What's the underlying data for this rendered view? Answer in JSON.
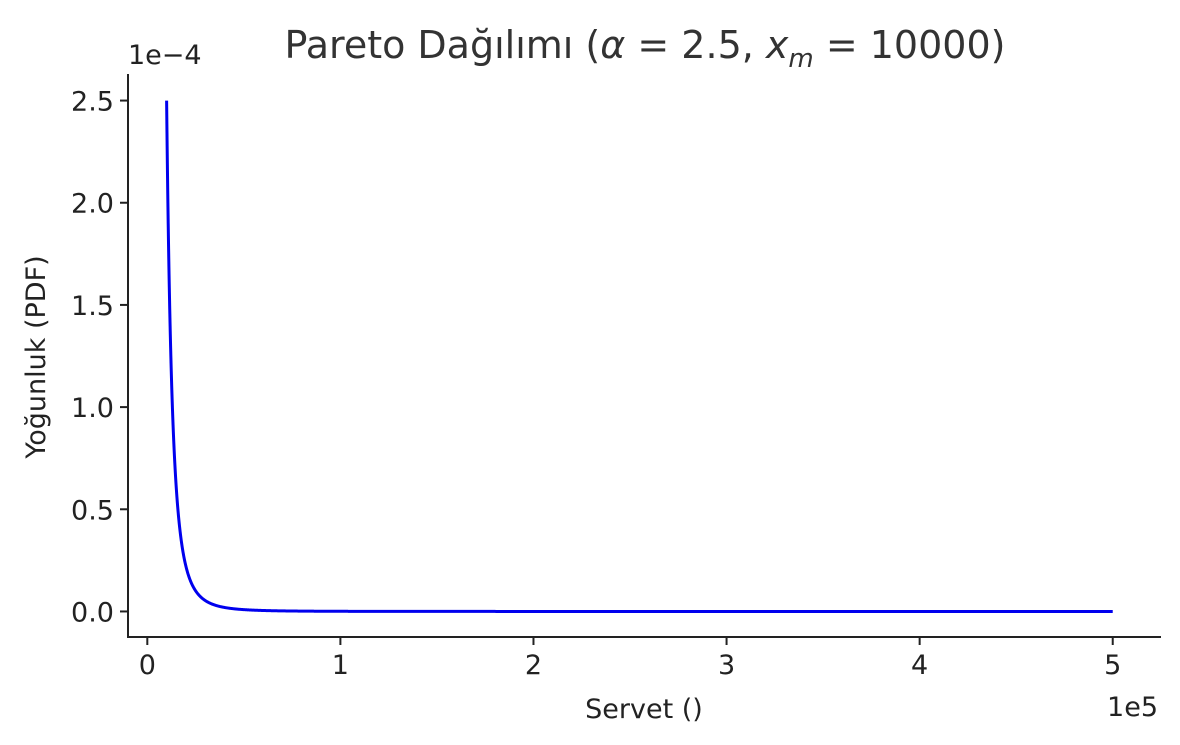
{
  "chart_data": {
    "type": "line",
    "title_prefix": "Pareto Dağılımı (",
    "title_alpha_symbol": "α",
    "title_alpha_eq": " = 2.5,  ",
    "title_xm_base": "x",
    "title_xm_sub": "m",
    "title_xm_eq": " = 10000)",
    "xlabel": "Servet ()",
    "ylabel": "Yoğunluk (PDF)",
    "x_offset_label": "1e5",
    "y_offset_label": "1e−4",
    "x_ticks": [
      "0",
      "1",
      "2",
      "3",
      "4",
      "5"
    ],
    "y_ticks": [
      "0.0",
      "0.5",
      "1.0",
      "1.5",
      "2.0",
      "2.5"
    ],
    "xlim": [
      -10000,
      525000
    ],
    "ylim": [
      -1.25e-05,
      0.000263
    ],
    "grid": false,
    "series": [
      {
        "color": "#0000ee",
        "distribution": "pareto",
        "alpha": 2.5,
        "x_m": 10000,
        "x_range": [
          10000,
          500000
        ],
        "x": [
          10000,
          11000,
          12000,
          13000,
          14000,
          15000,
          16000,
          17500,
          19000,
          20000,
          22500,
          25000,
          27500,
          30000,
          35000,
          40000,
          45000,
          50000,
          60000,
          70000,
          80000,
          100000,
          125000,
          150000,
          200000,
          250000,
          300000,
          400000,
          500000
        ],
        "y": [
          0.00025,
          0.0001971,
          0.0001585,
          0.0001297,
          0.0001077,
          9.07e-05,
          7.73e-05,
          6.19e-05,
          5.03e-05,
          4.42e-05,
          3.27e-05,
          2.53e-05,
          2.02e-05,
          1.64e-05,
          1.14e-05,
          8.1e-06,
          6e-06,
          4.5e-06,
          2.8e-06,
          1.8e-06,
          1.2e-06,
          6e-07,
          3e-07,
          2e-07,
          1e-07,
          1e-07,
          0.0,
          0.0,
          0.0
        ]
      }
    ]
  }
}
